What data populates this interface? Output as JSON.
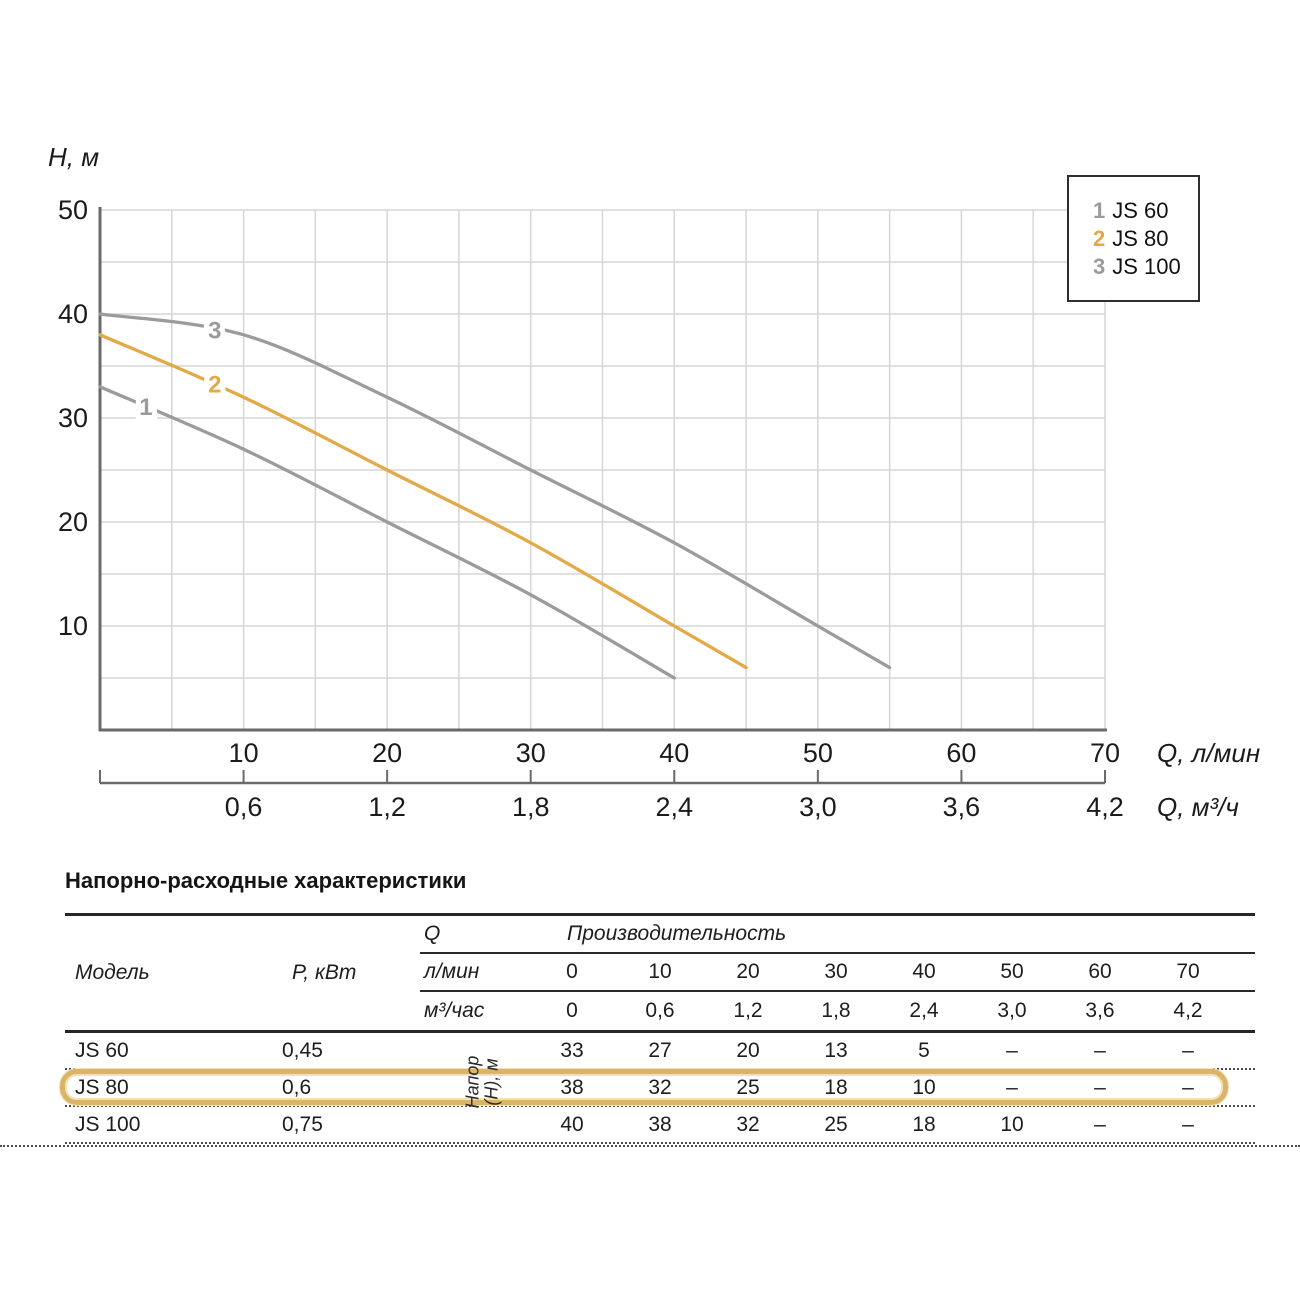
{
  "chart": {
    "y_axis_title": "H, м",
    "x_axis_title_lmin": "Q, л/мин",
    "x_axis_title_m3h": "Q, м³/ч",
    "y_ticks": [
      50,
      40,
      30,
      20,
      10
    ],
    "x_ticks_lmin": [
      10,
      20,
      30,
      40,
      50,
      60,
      70
    ],
    "x_ticks_m3h": [
      "0,6",
      "1,2",
      "1,8",
      "2,4",
      "3,0",
      "3,6",
      "4,2"
    ],
    "colors": {
      "grid": "#d6d6d6",
      "axis": "#6a6a6a",
      "gray_curve": "#9b9b9b",
      "orange_curve": "#e2a945",
      "text": "#1b1b1b"
    }
  },
  "chart_data": {
    "type": "line",
    "title": "",
    "xlabel": "Q, л/мин (secondary scale: Q, м³/ч)",
    "ylabel": "H, м",
    "xlim": [
      0,
      70
    ],
    "ylim": [
      0,
      50
    ],
    "grid": true,
    "legend_position": "top-right",
    "series": [
      {
        "name": "JS 60",
        "curve_label": "1",
        "color": "#9b9b9b",
        "label_at_q": 3.2,
        "points": [
          [
            0,
            33
          ],
          [
            10,
            27
          ],
          [
            20,
            20
          ],
          [
            30,
            13
          ],
          [
            40,
            5
          ]
        ]
      },
      {
        "name": "JS 80",
        "curve_label": "2",
        "color": "#e2a945",
        "label_at_q": 8,
        "points": [
          [
            0,
            38
          ],
          [
            10,
            32
          ],
          [
            20,
            25
          ],
          [
            30,
            18
          ],
          [
            40,
            10
          ],
          [
            45,
            6
          ]
        ]
      },
      {
        "name": "JS 100",
        "curve_label": "3",
        "color": "#9b9b9b",
        "label_at_q": 8,
        "points": [
          [
            0,
            40
          ],
          [
            10,
            38
          ],
          [
            20,
            32
          ],
          [
            30,
            25
          ],
          [
            40,
            18
          ],
          [
            50,
            10
          ],
          [
            55,
            6
          ]
        ]
      }
    ]
  },
  "legend": {
    "items": [
      {
        "num": "1",
        "name": "JS 60",
        "color": "#9b9b9b"
      },
      {
        "num": "2",
        "name": "JS 80",
        "color": "#e2a945"
      },
      {
        "num": "3",
        "name": "JS 100",
        "color": "#9b9b9b"
      }
    ]
  },
  "table": {
    "title": "Напорно-расходные характеристики",
    "col_model": "Модель",
    "col_power": "P, кВт",
    "q_label": "Q",
    "q_unit_lmin": "л/мин",
    "q_unit_m3h": "м³/час",
    "perf_label": "Производительность",
    "flow_lmin": [
      "0",
      "10",
      "20",
      "30",
      "40",
      "50",
      "60",
      "70"
    ],
    "flow_m3h": [
      "0",
      "0,6",
      "1,2",
      "1,8",
      "2,4",
      "3,0",
      "3,6",
      "4,2"
    ],
    "note_line1": "Напор",
    "note_line2": "(H), м",
    "highlight_color": "#d9b469",
    "rows": [
      {
        "model": "JS 60",
        "power": "0,45",
        "highlight": false,
        "values": [
          "33",
          "27",
          "20",
          "13",
          "5",
          "–",
          "–",
          "–"
        ]
      },
      {
        "model": "JS 80",
        "power": "0,6",
        "highlight": true,
        "values": [
          "38",
          "32",
          "25",
          "18",
          "10",
          "–",
          "–",
          "–"
        ]
      },
      {
        "model": "JS 100",
        "power": "0,75",
        "highlight": false,
        "values": [
          "40",
          "38",
          "32",
          "25",
          "18",
          "10",
          "–",
          "–"
        ]
      }
    ]
  }
}
